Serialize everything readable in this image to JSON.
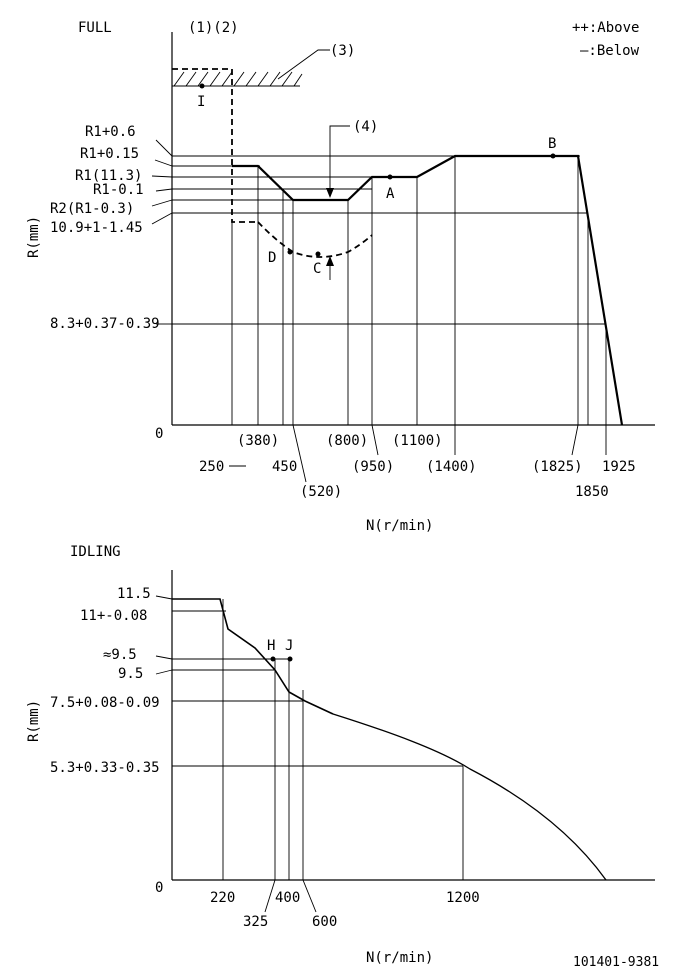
{
  "full": {
    "title": "FULL",
    "legend_above": "++:Above",
    "legend_below": "—:Below",
    "callout_1_2": "(1)(2)",
    "callout_3": "(3)",
    "callout_4": "(4)",
    "point_I": "I",
    "point_A": "A",
    "point_B": "B",
    "point_C": "C",
    "point_D": "D",
    "y_axis_label": "R(mm)",
    "x_axis_label": "N(r/min)",
    "origin": "0",
    "y_labels": [
      "R1+0.6",
      "R1+0.15",
      "R1(11.3)",
      "R1-0.1",
      "R2(R1-0.3)",
      "10.9+1-1.45",
      "8.3+0.37-0.39"
    ],
    "x_labels": [
      "250",
      "(380)",
      "450",
      "(520)",
      "(800)",
      "(950)",
      "(1100)",
      "(1400)",
      "(1825)",
      "1850",
      "1925"
    ]
  },
  "idling": {
    "title": "IDLING",
    "point_H": "H",
    "point_J": "J",
    "y_axis_label": "R(mm)",
    "x_axis_label": "N(r/min)",
    "origin": "0",
    "y_labels": [
      "11.5",
      "11+-0.08",
      "≈9.5",
      "9.5",
      "7.5+0.08-0.09",
      "5.3+0.33-0.35"
    ],
    "x_labels": [
      "220",
      "325",
      "400",
      "600",
      "1200"
    ]
  },
  "doc_number": "101401-9381"
}
